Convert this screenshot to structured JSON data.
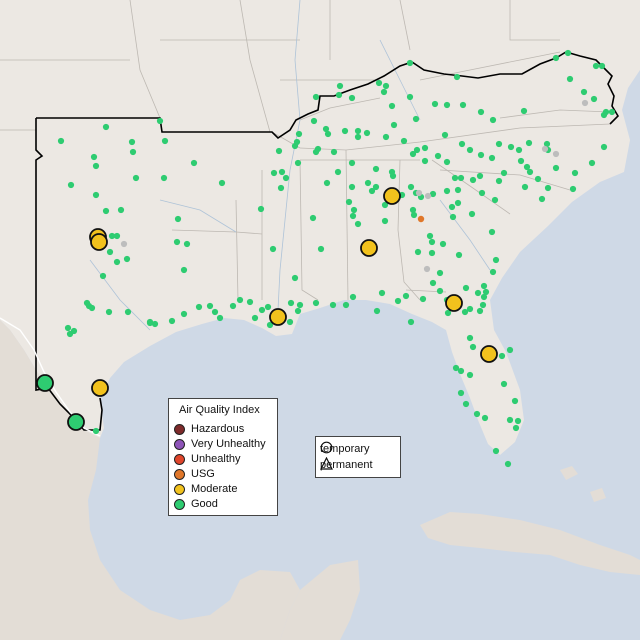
{
  "legend_aqi": {
    "title": "Air Quality Index",
    "items": [
      {
        "label": "Hazardous",
        "color": "#7e2a2a"
      },
      {
        "label": "Very Unhealthy",
        "color": "#8e54b8"
      },
      {
        "label": "Unhealthy",
        "color": "#e0452b"
      },
      {
        "label": "USG",
        "color": "#e0772a"
      },
      {
        "label": "Moderate",
        "color": "#f2c21d"
      },
      {
        "label": "Good",
        "color": "#2ecc71"
      }
    ]
  },
  "legend_shape": {
    "items": [
      {
        "label": "temporary",
        "shape": "circle"
      },
      {
        "label": "permanent",
        "shape": "triangle"
      }
    ]
  },
  "colors": {
    "ocean": "#cfd9e6",
    "land": "#ece8e3",
    "mexico": "#e3ddd6",
    "good": "#2ecc71",
    "moderate": "#f2c21d",
    "usg": "#e0772a",
    "no_data": "#bdbdbd",
    "region_outline": "#000000"
  },
  "monitors": {
    "large": [
      {
        "aqi": "Moderate"
      },
      {
        "aqi": "Moderate"
      },
      {
        "aqi": "Moderate"
      },
      {
        "aqi": "Moderate"
      },
      {
        "aqi": "Moderate"
      },
      {
        "aqi": "Moderate"
      },
      {
        "aqi": "Moderate"
      },
      {
        "aqi": "Moderate"
      },
      {
        "aqi": "Good"
      },
      {
        "aqi": "Good"
      }
    ],
    "small_usg": 1
  }
}
